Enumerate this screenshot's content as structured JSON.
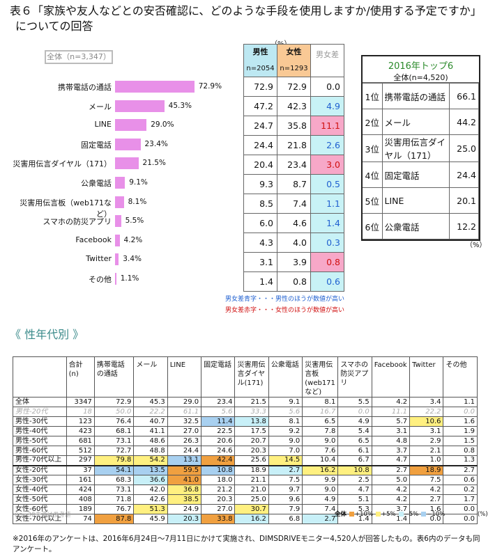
{
  "title_line1": "表６「家族や友人などとの安否確認に、どのような手段を使用しますか/使用する予定ですか」",
  "title_line2": "についての回答",
  "overall_label": "全体（n=3,347）",
  "pct_unit": "（%）",
  "bars": [
    {
      "label": "携帯電話の通話",
      "value": 72.9,
      "text": "72.9%",
      "male": "72.9",
      "female": "72.9",
      "diff": "0.0",
      "diff_color": ""
    },
    {
      "label": "メール",
      "value": 45.3,
      "text": "45.3%",
      "male": "47.2",
      "female": "42.3",
      "diff": "4.9",
      "diff_color": "blue"
    },
    {
      "label": "LINE",
      "value": 29.0,
      "text": "29.0%",
      "male": "24.7",
      "female": "35.8",
      "diff": "11.1",
      "diff_color": "red"
    },
    {
      "label": "固定電話",
      "value": 23.4,
      "text": "23.4%",
      "male": "24.4",
      "female": "21.8",
      "diff": "2.6",
      "diff_color": "blue"
    },
    {
      "label": "災害用伝言ダイヤル（171）",
      "value": 21.5,
      "text": "21.5%",
      "male": "20.4",
      "female": "23.4",
      "diff": "3.0",
      "diff_color": "red"
    },
    {
      "label": "公衆電話",
      "value": 9.1,
      "text": "9.1%",
      "male": "9.3",
      "female": "8.7",
      "diff": "0.5",
      "diff_color": "blue"
    },
    {
      "label": "災害用伝言板（web171など）",
      "value": 8.1,
      "text": "8.1%",
      "male": "8.5",
      "female": "7.4",
      "diff": "1.1",
      "diff_color": "blue"
    },
    {
      "label": "スマホの防災アプリ",
      "value": 5.5,
      "text": "5.5%",
      "male": "6.0",
      "female": "4.6",
      "diff": "1.4",
      "diff_color": "blue"
    },
    {
      "label": "Facebook",
      "value": 4.2,
      "text": "4.2%",
      "male": "4.3",
      "female": "4.0",
      "diff": "0.3",
      "diff_color": "blue"
    },
    {
      "label": "Twitter",
      "value": 3.4,
      "text": "3.4%",
      "male": "3.1",
      "female": "3.9",
      "diff": "0.8",
      "diff_color": "red"
    },
    {
      "label": "その他",
      "value": 1.1,
      "text": "1.1%",
      "male": "1.4",
      "female": "0.8",
      "diff": "0.6",
      "diff_color": "blue"
    }
  ],
  "gender_header": {
    "male": "男性",
    "male_n": "n=2054",
    "female": "女性",
    "female_n": "n=1293",
    "diff": "男女差"
  },
  "colors": {
    "bar": "#e890e8",
    "male_head": "#bde8f2",
    "female_head": "#f9c995",
    "blue_cell": "#c8f2f6",
    "red_cell": "#f7a8c8",
    "blue_text": "#2060d0",
    "red_text": "#d01010",
    "orange": "#f0a040",
    "yellow": "#fff080",
    "lightblue": "#c8f0f8",
    "blue": "#a8d0f0"
  },
  "note_blue": "男女差青字・・・男性のほうが数値が高い",
  "note_red": "男女差赤字・・・女性のほうが数値が高い",
  "top6": {
    "title": "2016年トップ6",
    "n": "全体(n=4,520)",
    "rows": [
      {
        "rank": "1位",
        "name": "携帯電話の通話",
        "value": "66.1"
      },
      {
        "rank": "2位",
        "name": "メール",
        "value": "44.2"
      },
      {
        "rank": "3位",
        "name": "災害用伝言ダイヤル（171）",
        "value": "25.0"
      },
      {
        "rank": "4位",
        "name": "固定電話",
        "value": "24.4"
      },
      {
        "rank": "5位",
        "name": "LINE",
        "value": "20.1"
      },
      {
        "rank": "6位",
        "name": "公衆電話",
        "value": "12.2"
      }
    ],
    "unit": "（%）"
  },
  "section_title": "《 性年代別 》",
  "table": {
    "headers": [
      "",
      "合計(n)",
      "携帯電話の通話",
      "メール",
      "LINE",
      "固定電話",
      "災害用伝言ダイヤル(171)",
      "公衆電話",
      "災害用伝言板(web171など)",
      "スマホの防災アプリ",
      "Facebook",
      "Twitter",
      "その他"
    ],
    "rows": [
      {
        "label": "全体",
        "cells": [
          "3347",
          "72.9",
          "45.3",
          "29.0",
          "23.4",
          "21.5",
          "9.1",
          "8.1",
          "5.5",
          "4.2",
          "3.4",
          "1.1"
        ],
        "hl": [
          "",
          "",
          "",
          "",
          "",
          "",
          "",
          "",
          "",
          "",
          "",
          ""
        ]
      },
      {
        "label": "男性-20代",
        "cells": [
          "18",
          "50.0",
          "22.2",
          "61.1",
          "5.6",
          "33.3",
          "5.6",
          "16.7",
          "0.0",
          "11.1",
          "22.2",
          "0.0"
        ],
        "hl": [
          "",
          "",
          "",
          "",
          "",
          "",
          "",
          "",
          "",
          "",
          "",
          ""
        ],
        "ref": true
      },
      {
        "label": "男性-30代",
        "cells": [
          "123",
          "76.4",
          "40.7",
          "32.5",
          "11.4",
          "13.8",
          "8.1",
          "6.5",
          "4.9",
          "5.7",
          "10.6",
          "1.6"
        ],
        "hl": [
          "",
          "",
          "",
          "",
          "b",
          "lb",
          "",
          "",
          "",
          "",
          "y",
          ""
        ]
      },
      {
        "label": "男性-40代",
        "cells": [
          "423",
          "68.1",
          "41.1",
          "27.0",
          "22.5",
          "17.5",
          "9.2",
          "7.8",
          "5.4",
          "3.1",
          "3.1",
          "1.9"
        ],
        "hl": [
          "",
          "",
          "",
          "",
          "",
          "",
          "",
          "",
          "",
          "",
          "",
          ""
        ]
      },
      {
        "label": "男性-50代",
        "cells": [
          "681",
          "73.1",
          "48.6",
          "26.3",
          "20.6",
          "20.7",
          "9.0",
          "9.0",
          "6.5",
          "4.8",
          "2.9",
          "1.5"
        ],
        "hl": [
          "",
          "",
          "",
          "",
          "",
          "",
          "",
          "",
          "",
          "",
          "",
          ""
        ]
      },
      {
        "label": "男性-60代",
        "cells": [
          "512",
          "72.7",
          "48.8",
          "24.4",
          "24.6",
          "20.3",
          "7.0",
          "7.6",
          "6.1",
          "3.7",
          "2.1",
          "0.8"
        ],
        "hl": [
          "",
          "",
          "",
          "",
          "",
          "",
          "",
          "",
          "",
          "",
          "",
          ""
        ]
      },
      {
        "label": "男性-70代以上",
        "cells": [
          "297",
          "79.8",
          "54.2",
          "13.1",
          "42.4",
          "25.6",
          "14.5",
          "10.4",
          "6.7",
          "4.7",
          "1.0",
          "1.3"
        ],
        "hl": [
          "",
          "y",
          "y",
          "b",
          "o",
          "",
          "y",
          "",
          "",
          "",
          "",
          ""
        ],
        "sep": true
      },
      {
        "label": "女性-20代",
        "cells": [
          "37",
          "54.1",
          "13.5",
          "59.5",
          "10.8",
          "18.9",
          "2.7",
          "16.2",
          "10.8",
          "2.7",
          "18.9",
          "2.7"
        ],
        "hl": [
          "",
          "b",
          "b",
          "o",
          "b",
          "",
          "lb",
          "y",
          "y",
          "",
          "o",
          ""
        ]
      },
      {
        "label": "女性-30代",
        "cells": [
          "161",
          "68.3",
          "36.6",
          "41.0",
          "18.0",
          "21.1",
          "7.5",
          "9.9",
          "2.5",
          "5.0",
          "7.5",
          "0.6"
        ],
        "hl": [
          "",
          "",
          "lb",
          "o",
          "",
          "",
          "",
          "",
          "",
          "",
          "",
          ""
        ]
      },
      {
        "label": "女性-40代",
        "cells": [
          "424",
          "73.1",
          "42.0",
          "36.8",
          "21.2",
          "21.0",
          "9.7",
          "9.0",
          "4.7",
          "4.2",
          "4.2",
          "0.2"
        ],
        "hl": [
          "",
          "",
          "",
          "y",
          "",
          "",
          "",
          "",
          "",
          "",
          "",
          ""
        ]
      },
      {
        "label": "女性-50代",
        "cells": [
          "408",
          "71.8",
          "42.6",
          "38.5",
          "20.3",
          "25.0",
          "9.6",
          "4.9",
          "5.1",
          "4.2",
          "2.7",
          "1.7"
        ],
        "hl": [
          "",
          "",
          "",
          "y",
          "",
          "",
          "",
          "",
          "",
          "",
          "",
          ""
        ]
      },
      {
        "label": "女性-60代",
        "cells": [
          "189",
          "76.7",
          "51.3",
          "24.9",
          "27.0",
          "30.7",
          "7.9",
          "7.4",
          "5.3",
          "3.7",
          "1.6",
          "0.0"
        ],
        "hl": [
          "",
          "",
          "y",
          "",
          "",
          "y",
          "",
          "",
          "",
          "",
          "",
          ""
        ]
      },
      {
        "label": "女性-70代以上",
        "cells": [
          "74",
          "87.8",
          "45.9",
          "20.3",
          "33.8",
          "16.2",
          "6.8",
          "2.7",
          "1.4",
          "1.4",
          "0.0",
          "0.0"
        ],
        "hl": [
          "",
          "o",
          "",
          "lb",
          "o",
          "lb",
          "",
          "lb",
          "",
          "",
          "",
          ""
        ]
      }
    ]
  },
  "n30_note": "※n=30未満は参考値",
  "legend": {
    "lead": "全体",
    "plus10": "+10%",
    "plus5": "+5%",
    "minus5": "−5%",
    "minus10": "−10%",
    "unit": "(%)"
  },
  "footnote": "※2016年のアンケートは、2016年6月24日〜7月11日にかけて実施され、DIMSDRIVEモニター4,520人が回答したもの。表6内のデータも同アンケート。"
}
